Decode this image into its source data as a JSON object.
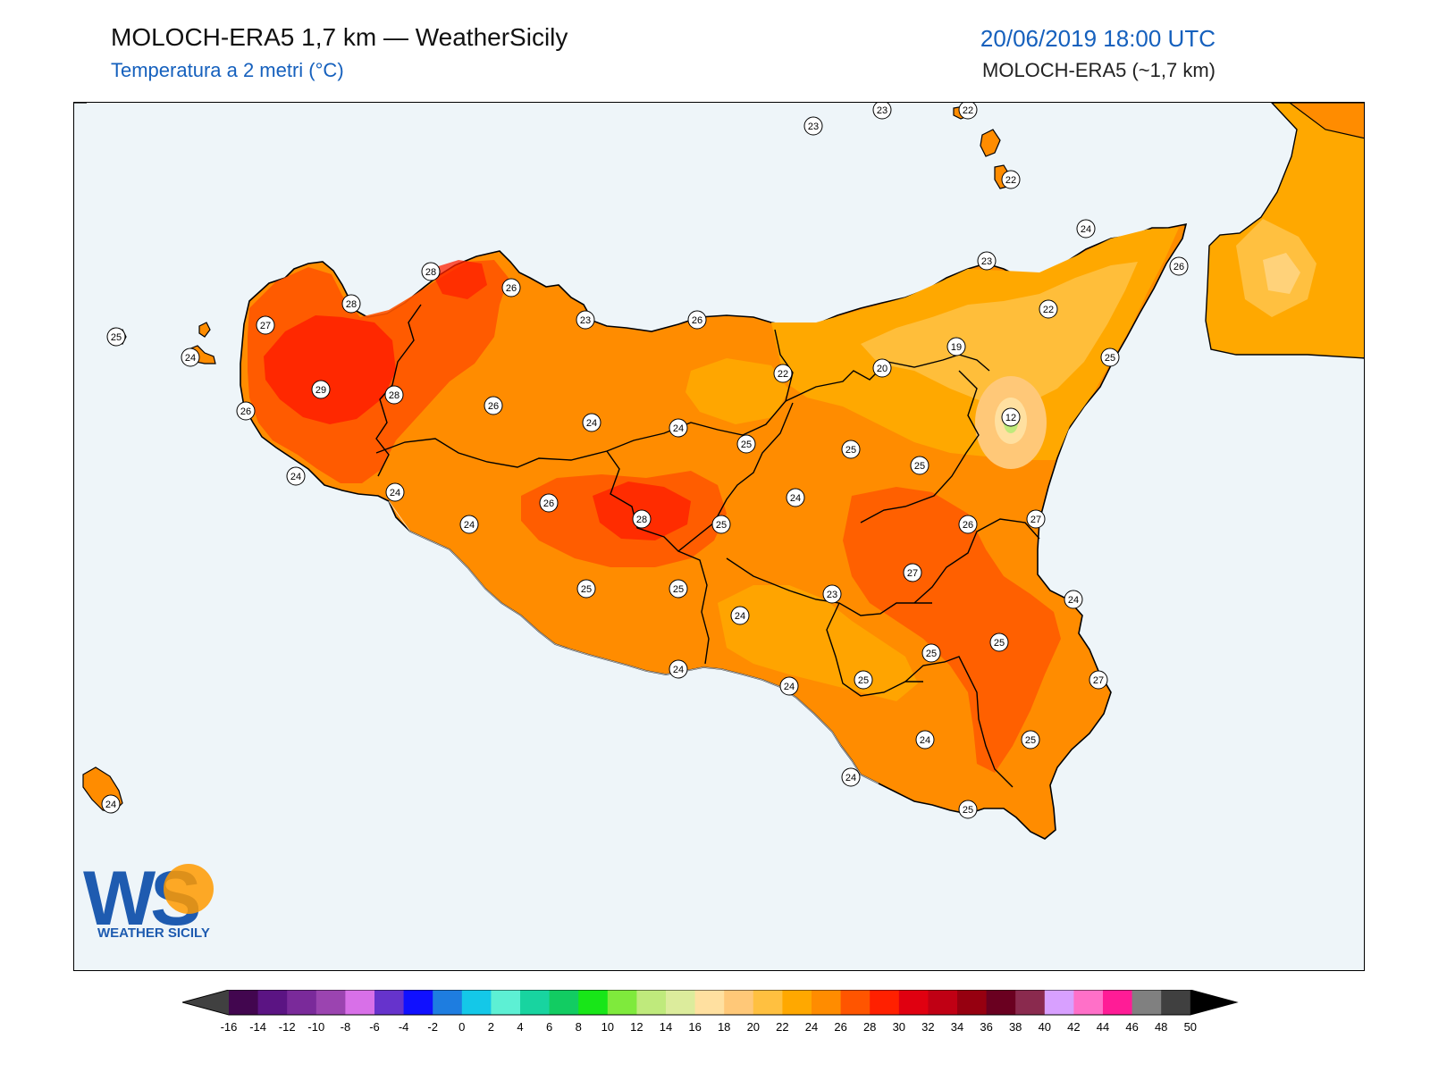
{
  "header": {
    "title": "MOLOCH-ERA5 1,7 km — WeatherSicily",
    "subtitle": "Temperatura a 2 metri (°C)",
    "datetime": "20/06/2019 18:00 UTC",
    "model": "MOLOCH-ERA5 (~1,7 km)"
  },
  "logo": {
    "letters": "WS",
    "text": "WEATHER SICILY"
  },
  "station_labels": [
    {
      "id": "s1",
      "value": "23"
    },
    {
      "id": "s2",
      "value": "23"
    },
    {
      "id": "s3",
      "value": "22"
    },
    {
      "id": "s4",
      "value": "22"
    },
    {
      "id": "s5",
      "value": "24"
    },
    {
      "id": "s6",
      "value": "23"
    },
    {
      "id": "s7",
      "value": "26"
    },
    {
      "id": "s8",
      "value": "28"
    },
    {
      "id": "s9",
      "value": "26"
    },
    {
      "id": "s10",
      "value": "28"
    },
    {
      "id": "s11",
      "value": "23"
    },
    {
      "id": "s12",
      "value": "26"
    },
    {
      "id": "s13",
      "value": "22"
    },
    {
      "id": "s14",
      "value": "27"
    },
    {
      "id": "s15",
      "value": "25"
    },
    {
      "id": "s16",
      "value": "24"
    },
    {
      "id": "s17",
      "value": "19"
    },
    {
      "id": "s18",
      "value": "25"
    },
    {
      "id": "s19",
      "value": "22"
    },
    {
      "id": "s20",
      "value": "20"
    },
    {
      "id": "s21",
      "value": "29"
    },
    {
      "id": "s22",
      "value": "28"
    },
    {
      "id": "s23",
      "value": "26"
    },
    {
      "id": "s24",
      "value": "26"
    },
    {
      "id": "s25",
      "value": "24"
    },
    {
      "id": "s26",
      "value": "24"
    },
    {
      "id": "s27",
      "value": "12"
    },
    {
      "id": "s28",
      "value": "25"
    },
    {
      "id": "s29",
      "value": "25"
    },
    {
      "id": "s30",
      "value": "25"
    },
    {
      "id": "s31",
      "value": "24"
    },
    {
      "id": "s32",
      "value": "24"
    },
    {
      "id": "s33",
      "value": "26"
    },
    {
      "id": "s34",
      "value": "24"
    },
    {
      "id": "s35",
      "value": "24"
    },
    {
      "id": "s36",
      "value": "28"
    },
    {
      "id": "s37",
      "value": "25"
    },
    {
      "id": "s38",
      "value": "26"
    },
    {
      "id": "s39",
      "value": "27"
    },
    {
      "id": "s40",
      "value": "27"
    },
    {
      "id": "s41",
      "value": "25"
    },
    {
      "id": "s42",
      "value": "25"
    },
    {
      "id": "s43",
      "value": "23"
    },
    {
      "id": "s44",
      "value": "24"
    },
    {
      "id": "s45",
      "value": "24"
    },
    {
      "id": "s46",
      "value": "25"
    },
    {
      "id": "s47",
      "value": "25"
    },
    {
      "id": "s48",
      "value": "24"
    },
    {
      "id": "s49",
      "value": "25"
    },
    {
      "id": "s50",
      "value": "27"
    },
    {
      "id": "s51",
      "value": "24"
    },
    {
      "id": "s52",
      "value": "24"
    },
    {
      "id": "s53",
      "value": "25"
    },
    {
      "id": "s54",
      "value": "24"
    },
    {
      "id": "s55",
      "value": "24"
    },
    {
      "id": "s56",
      "value": "25"
    }
  ],
  "colorbar": {
    "ticks": [
      "-16",
      "-14",
      "-12",
      "-10",
      "-8",
      "-6",
      "-4",
      "-2",
      "0",
      "2",
      "4",
      "6",
      "8",
      "10",
      "12",
      "14",
      "16",
      "18",
      "20",
      "22",
      "24",
      "26",
      "28",
      "30",
      "32",
      "34",
      "36",
      "38",
      "40",
      "42",
      "44",
      "46",
      "48",
      "50"
    ],
    "colors": [
      "#42064f",
      "#5b1483",
      "#7a2a9a",
      "#9b44b0",
      "#d870e8",
      "#6633cc",
      "#1010ff",
      "#1e7de0",
      "#14c8e8",
      "#5df0d4",
      "#18d4a0",
      "#12cc62",
      "#18e618",
      "#7fea3c",
      "#bfea7c",
      "#dcec9c",
      "#ffe0a0",
      "#ffc878",
      "#ffc040",
      "#ffa800",
      "#ff8c00",
      "#ff5500",
      "#ff2000",
      "#e00010",
      "#c00014",
      "#960010",
      "#6a0020",
      "#8a2a4e",
      "#d8a0ff",
      "#ff70c8",
      "#ff1c96",
      "#808080",
      "#404040"
    ],
    "under_color": "#404040",
    "over_color": "#000000"
  }
}
